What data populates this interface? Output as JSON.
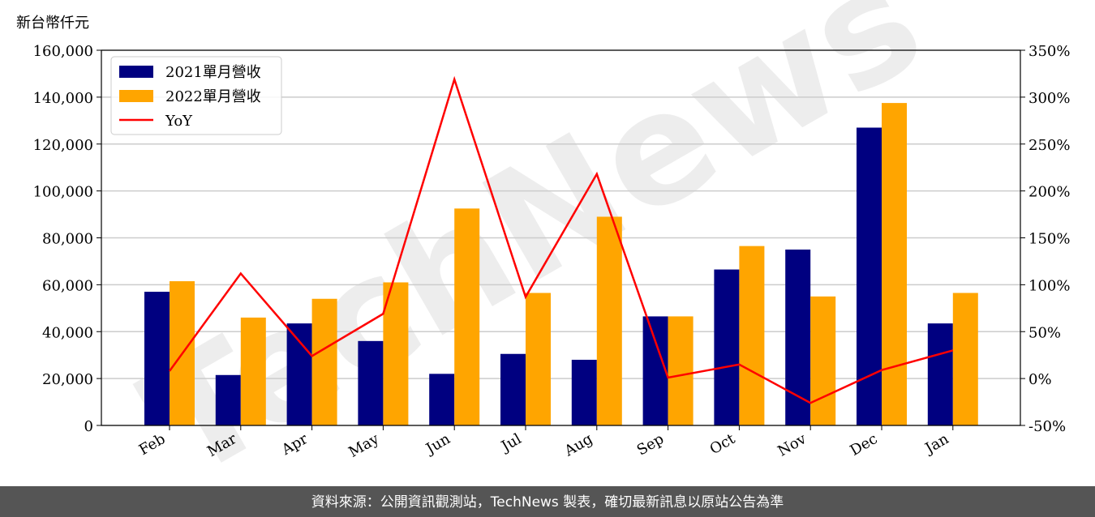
{
  "chart_data": {
    "type": "bar_line",
    "y_label": "新台幣仟元",
    "categories": [
      "Feb",
      "Mar",
      "Apr",
      "May",
      "Jun",
      "Jul",
      "Aug",
      "Sep",
      "Oct",
      "Nov",
      "Dec",
      "Jan"
    ],
    "series": [
      {
        "name": "2021單月營收",
        "color": "#000080",
        "type": "bar",
        "values": [
          57000,
          21500,
          43500,
          36000,
          22000,
          30500,
          28000,
          46500,
          66500,
          75000,
          127000,
          43500
        ]
      },
      {
        "name": "2022單月營收",
        "color": "#ffa500",
        "type": "bar",
        "values": [
          61500,
          46000,
          54000,
          61000,
          92500,
          56500,
          89000,
          46500,
          76500,
          55000,
          137500,
          56500
        ]
      },
      {
        "name": "YoY",
        "color": "#ff0000",
        "type": "line",
        "axis": "y2",
        "values": [
          8,
          112,
          24,
          69,
          319,
          87,
          218,
          1,
          15,
          -26,
          9,
          30
        ]
      }
    ],
    "ylim": [
      0,
      160000
    ],
    "yticks": [
      0,
      {
        "value": 20000,
        "label": "20,000"
      },
      {
        "value": 40000,
        "label": "40,000"
      },
      {
        "value": 60000,
        "label": "60,000"
      },
      {
        "value": 80000,
        "label": "80,000"
      },
      {
        "value": 100000,
        "label": "100,000"
      },
      {
        "value": 120000,
        "label": "120,000"
      },
      {
        "value": 140000,
        "label": "140,000"
      },
      {
        "value": 160000,
        "label": "160,000"
      }
    ],
    "y2lim": [
      -50,
      350
    ],
    "y2ticks": [
      {
        "value": -50,
        "label": "-50%"
      },
      {
        "value": 0,
        "label": "0%"
      },
      {
        "value": 50,
        "label": "50%"
      },
      {
        "value": 100,
        "label": "100%"
      },
      {
        "value": 150,
        "label": "150%"
      },
      {
        "value": 200,
        "label": "200%"
      },
      {
        "value": 250,
        "label": "250%"
      },
      {
        "value": 300,
        "label": "300%"
      },
      {
        "value": 350,
        "label": "350%"
      }
    ],
    "grid": true,
    "legend": "upper left",
    "watermark": "TechNews",
    "footer": "資料來源：公開資訊觀測站，TechNews 製表，確切最新訊息以原站公告為準"
  }
}
